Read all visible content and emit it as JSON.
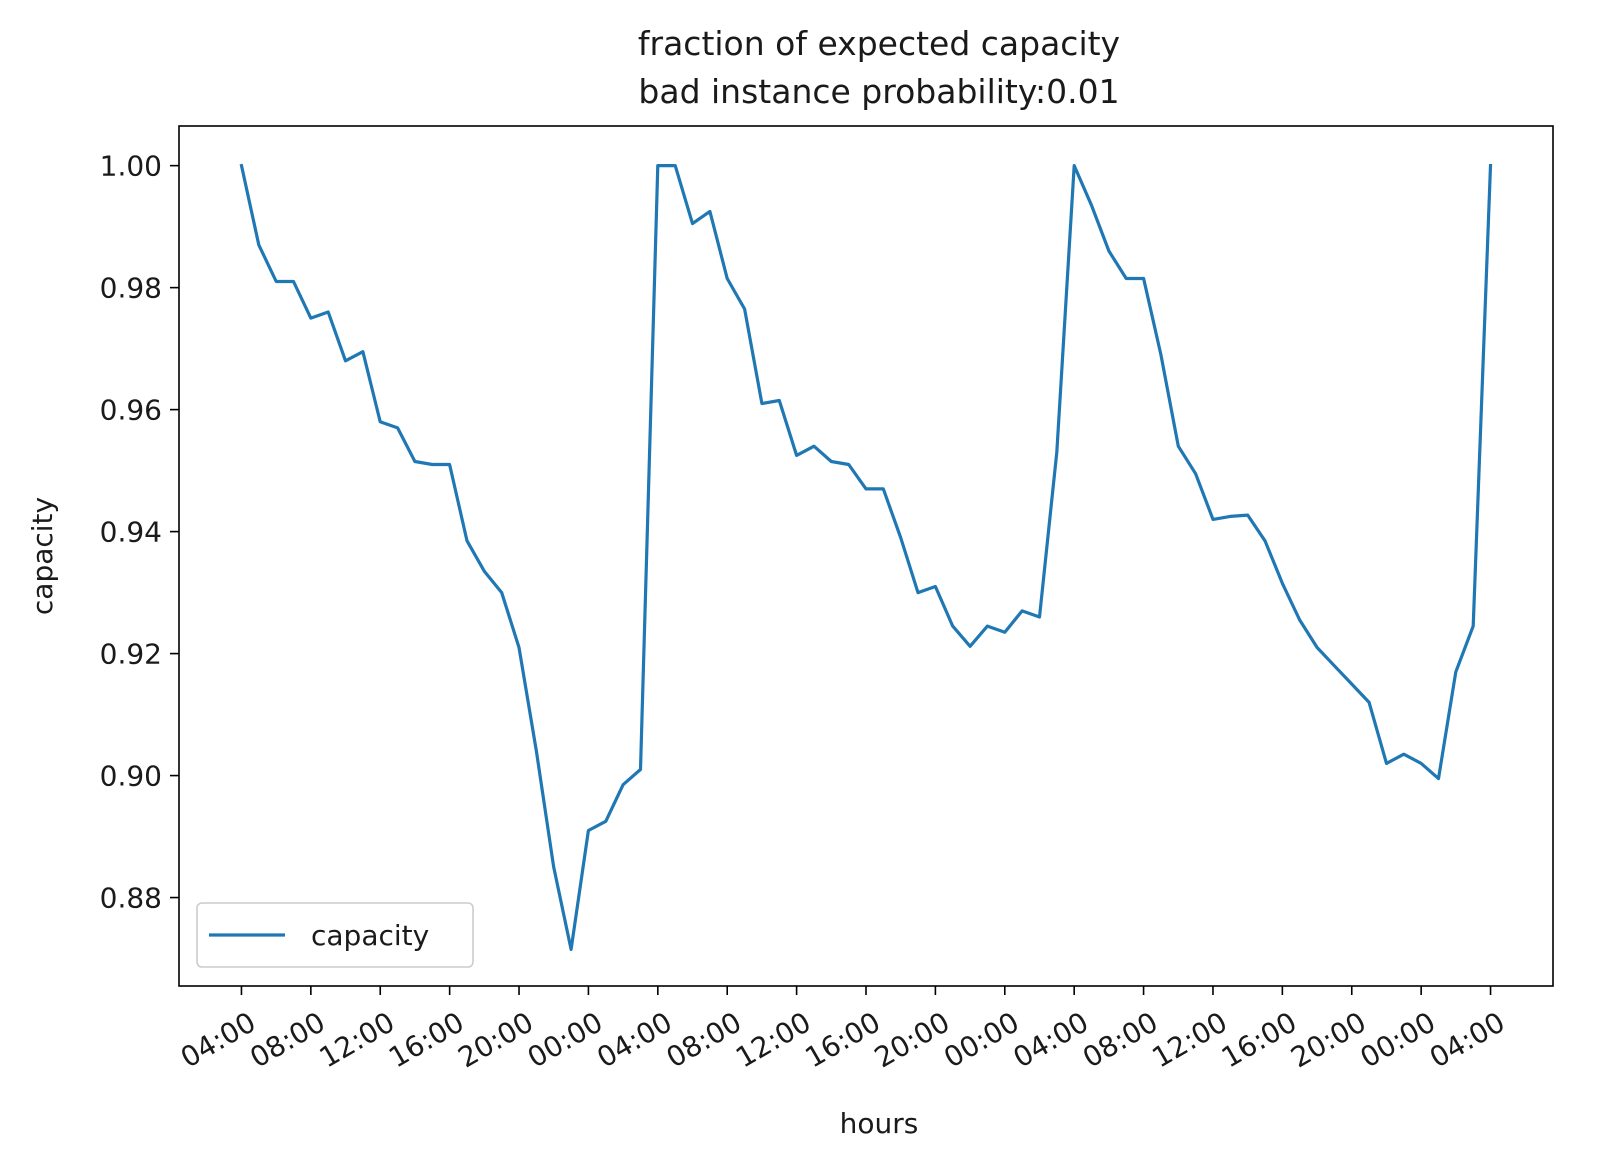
{
  "chart_data": {
    "type": "line",
    "title": "fraction of expected capacity",
    "subtitle": "bad instance probability:0.01",
    "xlabel": "hours",
    "ylabel": "capacity",
    "ylim": [
      0.8655,
      1.0065
    ],
    "yticks": [
      0.88,
      0.9,
      0.92,
      0.94,
      0.96,
      0.98,
      1.0
    ],
    "ytick_labels": [
      "0.88",
      "0.90",
      "0.92",
      "0.94",
      "0.96",
      "0.98",
      "1.00"
    ],
    "x_unit": "hours since first 04:00 tick",
    "xlim": [
      -3.6,
      75.6
    ],
    "xticks": [
      0,
      4,
      8,
      12,
      16,
      20,
      24,
      28,
      32,
      36,
      40,
      44,
      48,
      52,
      56,
      60,
      64,
      68,
      72
    ],
    "xtick_labels": [
      "04:00",
      "08:00",
      "12:00",
      "16:00",
      "20:00",
      "00:00",
      "04:00",
      "08:00",
      "12:00",
      "16:00",
      "20:00",
      "00:00",
      "04:00",
      "08:00",
      "12:00",
      "16:00",
      "20:00",
      "00:00",
      "04:00"
    ],
    "grid": false,
    "legend": {
      "position": "lower-left"
    },
    "series": [
      {
        "name": "capacity",
        "color": "#1f77b4",
        "x": [
          0,
          1,
          2,
          3,
          4,
          5,
          6,
          7,
          8,
          9,
          10,
          11,
          12,
          13,
          14,
          15,
          16,
          17,
          18,
          19,
          20,
          21,
          22,
          23,
          24,
          25,
          26,
          27,
          28,
          29,
          30,
          31,
          32,
          33,
          34,
          35,
          36,
          37,
          38,
          39,
          40,
          41,
          42,
          43,
          44,
          45,
          46,
          47,
          48,
          49,
          50,
          51,
          52,
          53,
          54,
          55,
          56,
          57,
          58,
          59,
          60,
          61,
          62,
          63,
          64,
          65,
          66,
          67,
          68,
          69,
          70,
          71,
          72
        ],
        "y": [
          1.0,
          0.987,
          0.981,
          0.981,
          0.975,
          0.976,
          0.968,
          0.9695,
          0.958,
          0.957,
          0.9515,
          0.951,
          0.951,
          0.9385,
          0.9335,
          0.93,
          0.921,
          0.904,
          0.885,
          0.8715,
          0.891,
          0.8925,
          0.8985,
          0.901,
          1.0,
          1.0,
          0.9905,
          0.9925,
          0.9815,
          0.9765,
          0.961,
          0.9615,
          0.9525,
          0.954,
          0.9515,
          0.951,
          0.947,
          0.947,
          0.939,
          0.93,
          0.931,
          0.9245,
          0.9212,
          0.9245,
          0.9235,
          0.927,
          0.926,
          0.953,
          1.0,
          0.9935,
          0.986,
          0.9815,
          0.9815,
          0.969,
          0.954,
          0.9495,
          0.942,
          0.9425,
          0.9427,
          0.9385,
          0.9315,
          0.9255,
          0.921,
          0.918,
          0.915,
          0.912,
          0.902,
          0.9035,
          0.902,
          0.8995,
          0.917,
          0.9245,
          1.0
        ]
      }
    ]
  }
}
